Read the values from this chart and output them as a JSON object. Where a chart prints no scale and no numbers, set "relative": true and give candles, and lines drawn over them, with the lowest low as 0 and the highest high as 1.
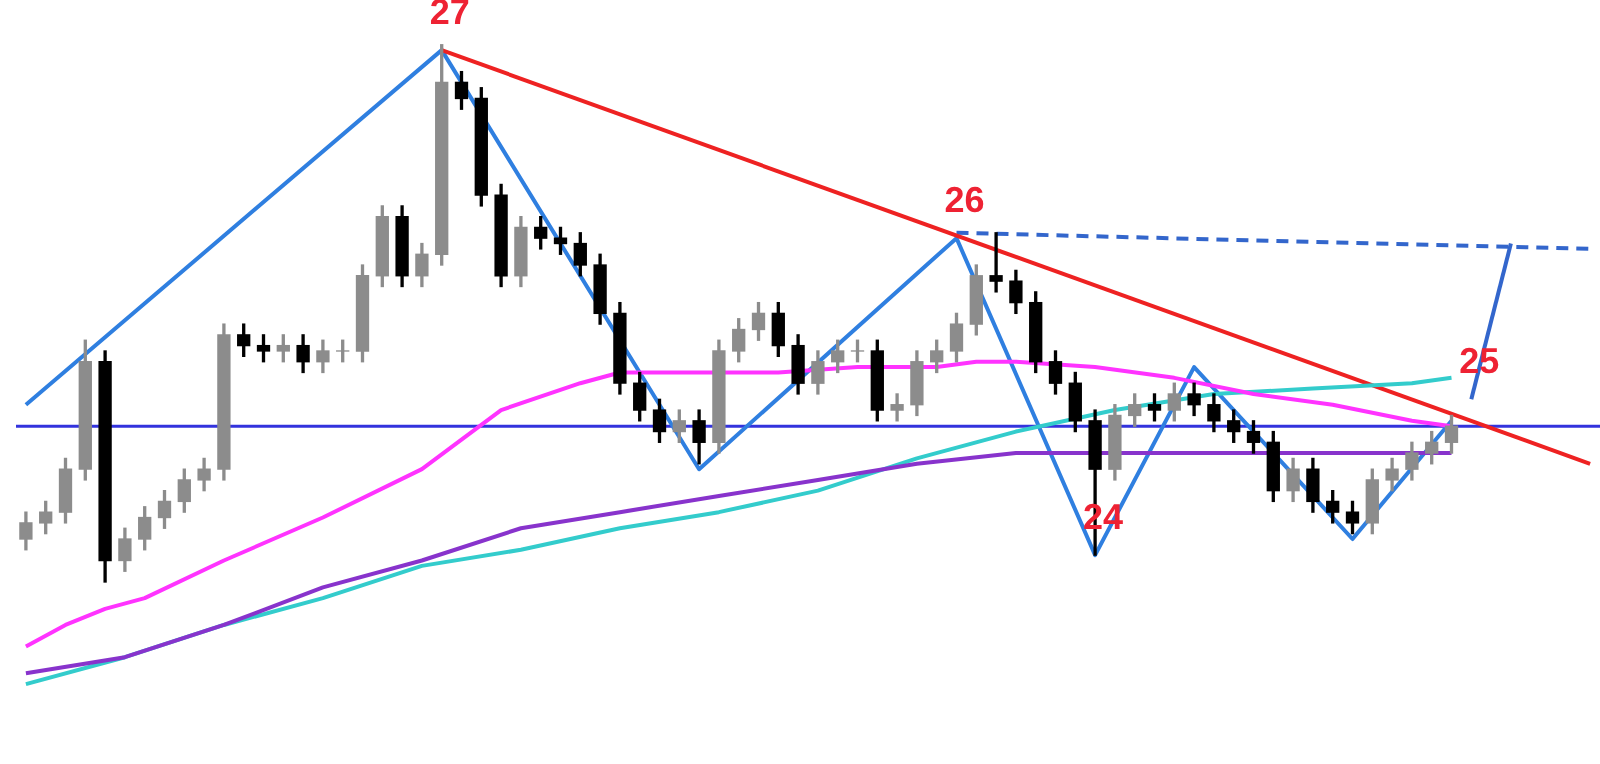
{
  "chart_data": {
    "type": "candlestick",
    "relative": true,
    "categories": [
      null,
      null,
      null,
      null,
      null,
      null,
      null,
      null,
      null,
      null,
      null,
      null,
      null,
      null,
      null,
      null,
      null,
      null,
      null,
      null,
      null,
      null,
      null,
      null,
      null,
      null,
      null,
      null,
      null,
      null,
      null,
      null,
      null,
      null,
      null,
      null,
      null,
      null,
      null,
      null,
      null,
      null,
      null,
      null,
      null,
      null,
      null,
      null,
      null,
      null,
      null,
      null,
      null,
      null,
      null,
      null,
      null,
      null,
      null,
      null,
      null,
      null,
      null,
      null,
      null,
      null,
      null,
      null,
      null,
      null,
      null,
      null,
      null,
      null,
      null,
      null,
      null,
      null,
      null,
      null
    ],
    "ohlc": [
      [
        0.08,
        0.13,
        0.06,
        0.11
      ],
      [
        0.11,
        0.15,
        0.09,
        0.13
      ],
      [
        0.13,
        0.23,
        0.11,
        0.21
      ],
      [
        0.21,
        0.45,
        0.19,
        0.41
      ],
      [
        0.41,
        0.43,
        0.0,
        0.04
      ],
      [
        0.04,
        0.1,
        0.02,
        0.08
      ],
      [
        0.08,
        0.14,
        0.06,
        0.12
      ],
      [
        0.12,
        0.17,
        0.1,
        0.15
      ],
      [
        0.15,
        0.21,
        0.13,
        0.19
      ],
      [
        0.19,
        0.23,
        0.17,
        0.21
      ],
      [
        0.21,
        0.48,
        0.19,
        0.46
      ],
      [
        0.46,
        0.48,
        0.42,
        0.44
      ],
      [
        0.44,
        0.46,
        0.41,
        0.43
      ],
      [
        0.43,
        0.46,
        0.41,
        0.44
      ],
      [
        0.44,
        0.46,
        0.39,
        0.41
      ],
      [
        0.41,
        0.45,
        0.39,
        0.43
      ],
      [
        0.43,
        0.45,
        0.41,
        0.43
      ],
      [
        0.43,
        0.59,
        0.41,
        0.57
      ],
      [
        0.57,
        0.7,
        0.55,
        0.68
      ],
      [
        0.68,
        0.7,
        0.55,
        0.57
      ],
      [
        0.57,
        0.63,
        0.55,
        0.61
      ],
      [
        0.61,
        1.0,
        0.59,
        0.93
      ],
      [
        0.93,
        0.95,
        0.88,
        0.9
      ],
      [
        0.9,
        0.92,
        0.7,
        0.72
      ],
      [
        0.72,
        0.74,
        0.55,
        0.57
      ],
      [
        0.57,
        0.68,
        0.55,
        0.66
      ],
      [
        0.66,
        0.68,
        0.62,
        0.64
      ],
      [
        0.64,
        0.66,
        0.61,
        0.63
      ],
      [
        0.63,
        0.65,
        0.57,
        0.59
      ],
      [
        0.59,
        0.61,
        0.48,
        0.5
      ],
      [
        0.5,
        0.52,
        0.35,
        0.37
      ],
      [
        0.37,
        0.39,
        0.3,
        0.32
      ],
      [
        0.32,
        0.34,
        0.26,
        0.28
      ],
      [
        0.28,
        0.32,
        0.26,
        0.3
      ],
      [
        0.3,
        0.32,
        0.22,
        0.26
      ],
      [
        0.26,
        0.45,
        0.24,
        0.43
      ],
      [
        0.43,
        0.49,
        0.41,
        0.47
      ],
      [
        0.47,
        0.52,
        0.45,
        0.5
      ],
      [
        0.5,
        0.52,
        0.42,
        0.44
      ],
      [
        0.44,
        0.46,
        0.35,
        0.37
      ],
      [
        0.37,
        0.43,
        0.35,
        0.41
      ],
      [
        0.41,
        0.45,
        0.39,
        0.43
      ],
      [
        0.43,
        0.45,
        0.41,
        0.43
      ],
      [
        0.43,
        0.45,
        0.3,
        0.32
      ],
      [
        0.32,
        0.35,
        0.3,
        0.33
      ],
      [
        0.33,
        0.43,
        0.31,
        0.41
      ],
      [
        0.41,
        0.45,
        0.39,
        0.43
      ],
      [
        0.43,
        0.5,
        0.41,
        0.48
      ],
      [
        0.48,
        0.59,
        0.46,
        0.57
      ],
      [
        0.57,
        0.65,
        0.54,
        0.56
      ],
      [
        0.56,
        0.58,
        0.5,
        0.52
      ],
      [
        0.52,
        0.54,
        0.39,
        0.41
      ],
      [
        0.41,
        0.43,
        0.35,
        0.37
      ],
      [
        0.37,
        0.39,
        0.28,
        0.3
      ],
      [
        0.3,
        0.32,
        0.05,
        0.21
      ],
      [
        0.21,
        0.33,
        0.19,
        0.31
      ],
      [
        0.31,
        0.35,
        0.29,
        0.33
      ],
      [
        0.33,
        0.35,
        0.3,
        0.32
      ],
      [
        0.32,
        0.37,
        0.3,
        0.35
      ],
      [
        0.35,
        0.37,
        0.31,
        0.33
      ],
      [
        0.33,
        0.35,
        0.28,
        0.3
      ],
      [
        0.3,
        0.32,
        0.26,
        0.28
      ],
      [
        0.28,
        0.3,
        0.24,
        0.26
      ],
      [
        0.26,
        0.28,
        0.15,
        0.17
      ],
      [
        0.17,
        0.23,
        0.15,
        0.21
      ],
      [
        0.21,
        0.23,
        0.13,
        0.15
      ],
      [
        0.15,
        0.17,
        0.11,
        0.13
      ],
      [
        0.13,
        0.15,
        0.09,
        0.11
      ],
      [
        0.11,
        0.21,
        0.09,
        0.19
      ],
      [
        0.19,
        0.23,
        0.17,
        0.21
      ],
      [
        0.21,
        0.26,
        0.19,
        0.24
      ],
      [
        0.24,
        0.28,
        0.22,
        0.26
      ],
      [
        0.26,
        0.31,
        0.24,
        0.29
      ],
      null,
      null,
      null,
      null,
      null,
      null,
      null
    ],
    "series": [
      {
        "type": "line",
        "color": "#ff33ff",
        "values": [
          -0.12,
          null,
          -0.08,
          null,
          -0.05,
          null,
          -0.03,
          null,
          null,
          null,
          0.04,
          null,
          null,
          null,
          null,
          0.12,
          null,
          null,
          null,
          null,
          0.21,
          null,
          null,
          null,
          0.32,
          null,
          null,
          null,
          0.37,
          null,
          0.39,
          null,
          null,
          null,
          0.39,
          null,
          null,
          null,
          0.39,
          null,
          null,
          null,
          0.4,
          null,
          null,
          null,
          0.4,
          null,
          0.41,
          null,
          0.41,
          null,
          null,
          null,
          0.4,
          null,
          null,
          null,
          0.38,
          null,
          null,
          null,
          0.35,
          null,
          null,
          null,
          0.33,
          null,
          null,
          null,
          0.3,
          null,
          0.29,
          null,
          null,
          null,
          null,
          null,
          null,
          null
        ]
      },
      {
        "type": "line",
        "color": "#8833cc",
        "values": [
          -0.17,
          null,
          null,
          null,
          null,
          -0.14,
          null,
          null,
          null,
          null,
          -0.08,
          null,
          null,
          null,
          null,
          -0.01,
          null,
          null,
          null,
          null,
          0.04,
          null,
          null,
          null,
          null,
          0.1,
          null,
          null,
          null,
          null,
          0.13,
          null,
          null,
          null,
          null,
          0.16,
          null,
          null,
          null,
          null,
          0.19,
          null,
          null,
          null,
          null,
          0.22,
          null,
          null,
          null,
          null,
          0.24,
          null,
          null,
          null,
          null,
          0.24,
          null,
          null,
          null,
          null,
          0.24,
          null,
          null,
          null,
          null,
          0.24,
          null,
          null,
          null,
          null,
          0.24,
          null,
          0.24,
          null,
          null,
          null,
          null,
          null,
          null,
          null
        ]
      },
      {
        "type": "line",
        "color": "#33cccc",
        "values": [
          -0.19,
          null,
          null,
          null,
          null,
          -0.14,
          null,
          null,
          null,
          null,
          -0.08,
          null,
          null,
          null,
          null,
          -0.03,
          null,
          null,
          null,
          null,
          0.03,
          null,
          null,
          null,
          null,
          0.06,
          null,
          null,
          null,
          null,
          0.1,
          null,
          null,
          null,
          null,
          0.13,
          null,
          null,
          null,
          null,
          0.17,
          null,
          null,
          null,
          null,
          0.23,
          null,
          null,
          null,
          null,
          0.28,
          null,
          null,
          null,
          null,
          0.32,
          null,
          null,
          null,
          null,
          0.35,
          null,
          null,
          null,
          null,
          0.36,
          null,
          null,
          null,
          null,
          0.37,
          null,
          0.38,
          null,
          null,
          null,
          null,
          null,
          null,
          null
        ]
      },
      {
        "type": "line",
        "color": "#ee2222",
        "values": [
          null,
          null,
          null,
          null,
          null,
          null,
          null,
          null,
          null,
          null,
          null,
          null,
          null,
          null,
          null,
          null,
          null,
          null,
          null,
          null,
          null,
          0.99,
          null,
          null,
          null,
          null,
          null,
          null,
          null,
          null,
          null,
          null,
          null,
          null,
          null,
          null,
          null,
          null,
          null,
          null,
          null,
          null,
          null,
          null,
          null,
          null,
          null,
          null,
          null,
          null,
          null,
          null,
          null,
          null,
          null,
          null,
          null,
          null,
          null,
          null,
          null,
          null,
          null,
          null,
          null,
          null,
          null,
          null,
          null,
          null,
          null,
          null,
          null,
          null,
          null,
          null,
          null,
          null,
          null,
          0.22
        ]
      },
      {
        "type": "line",
        "color": "#2f7fe0",
        "values": [
          0.33,
          null,
          null,
          null,
          null,
          null,
          null,
          null,
          null,
          null,
          null,
          null,
          null,
          null,
          null,
          null,
          null,
          null,
          null,
          null,
          null,
          0.99,
          null,
          null,
          null,
          null,
          null,
          null,
          null,
          null,
          null,
          null,
          null,
          null,
          0.21,
          null,
          null,
          null,
          null,
          null,
          null,
          null,
          null,
          null,
          null,
          null,
          null,
          0.64,
          null,
          null,
          null,
          null,
          null,
          null,
          0.05,
          null,
          null,
          null,
          null,
          0.4,
          null,
          null,
          null,
          null,
          null,
          null,
          null,
          0.08,
          null,
          null,
          null,
          null,
          0.3,
          null,
          null,
          null,
          null,
          null,
          null,
          null
        ]
      },
      {
        "type": "line",
        "color": "#3366cc",
        "line_style": "dashed",
        "values": [
          null,
          null,
          null,
          null,
          null,
          null,
          null,
          null,
          null,
          null,
          null,
          null,
          null,
          null,
          null,
          null,
          null,
          null,
          null,
          null,
          null,
          null,
          null,
          null,
          null,
          null,
          null,
          null,
          null,
          null,
          null,
          null,
          null,
          null,
          null,
          null,
          null,
          null,
          null,
          null,
          null,
          null,
          null,
          null,
          null,
          null,
          null,
          0.65,
          null,
          null,
          null,
          null,
          null,
          null,
          null,
          null,
          null,
          null,
          null,
          null,
          null,
          null,
          null,
          null,
          null,
          null,
          null,
          null,
          null,
          null,
          null,
          null,
          null,
          null,
          null,
          null,
          null,
          null,
          null,
          0.62
        ]
      },
      {
        "type": "line",
        "color": "#3366cc",
        "values": [
          null,
          null,
          null,
          null,
          null,
          null,
          null,
          null,
          null,
          null,
          null,
          null,
          null,
          null,
          null,
          null,
          null,
          null,
          null,
          null,
          null,
          null,
          null,
          null,
          null,
          null,
          null,
          null,
          null,
          null,
          null,
          null,
          null,
          null,
          null,
          null,
          null,
          null,
          null,
          null,
          null,
          null,
          null,
          null,
          null,
          null,
          null,
          null,
          null,
          null,
          null,
          null,
          null,
          null,
          null,
          null,
          null,
          null,
          null,
          null,
          null,
          null,
          null,
          null,
          null,
          null,
          null,
          null,
          null,
          null,
          null,
          null,
          null,
          0.34,
          null,
          0.63,
          null,
          null,
          null,
          null
        ]
      }
    ],
    "ref_lines": [
      {
        "axis": "y",
        "value": 0.29,
        "color": "#3333dd"
      }
    ],
    "annotations": [
      {
        "text": "27",
        "y": 0.99
      },
      {
        "text": "26",
        "y": 0.64
      },
      {
        "text": "24",
        "y": 0.05
      },
      {
        "text": "25",
        "y": 0.34
      }
    ]
  }
}
